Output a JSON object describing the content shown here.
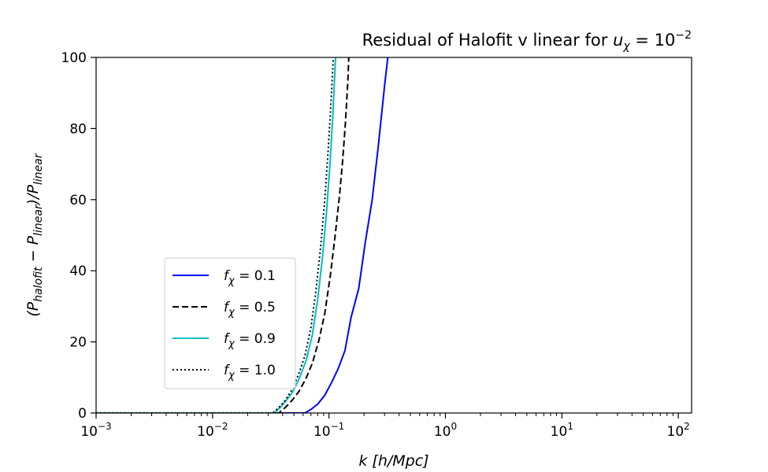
{
  "chart_data": {
    "type": "line",
    "title": "Residual of Halofit v linear for u_χ = 10^−2",
    "title_parts": {
      "main": "Residual of Halofit v linear for ",
      "var": "u",
      "sub": "χ",
      "eq": " = 10",
      "sup": "−2"
    },
    "xlabel": "k [h/Mpc]",
    "xlabel_parts": {
      "var": "k",
      "rest": " [h/Mpc]"
    },
    "ylabel": "(P_halofit − P_linear)/P_linear",
    "ylabel_parts": {
      "open": "(P",
      "sub1": "halofit",
      "mid": " − P",
      "sub2": "linear",
      "mid2": ")/P",
      "sub3": "linear"
    },
    "xscale": "log",
    "xlim": [
      0.001,
      130
    ],
    "ylim": [
      0,
      100
    ],
    "x_ticks": [
      {
        "value": 0.001,
        "base": "10",
        "exp": "−3"
      },
      {
        "value": 0.01,
        "base": "10",
        "exp": "−2"
      },
      {
        "value": 0.1,
        "base": "10",
        "exp": "−1"
      },
      {
        "value": 1,
        "base": "10",
        "exp": "0"
      },
      {
        "value": 10,
        "base": "10",
        "exp": "1"
      },
      {
        "value": 100,
        "base": "10",
        "exp": "2"
      }
    ],
    "y_ticks": [
      0,
      20,
      40,
      60,
      80,
      100
    ],
    "grid": false,
    "legend_position": "lower-left",
    "series": [
      {
        "name": "f_χ = 0.1",
        "label_var": "f",
        "label_sub": "χ",
        "label_val": " = 0.1",
        "color": "#0000ff",
        "dash": "solid",
        "points": [
          [
            0.001,
            0
          ],
          [
            0.02,
            0
          ],
          [
            0.062,
            0
          ],
          [
            0.07,
            1
          ],
          [
            0.08,
            2.5
          ],
          [
            0.092,
            5
          ],
          [
            0.105,
            8.5
          ],
          [
            0.12,
            12.5
          ],
          [
            0.137,
            17.5
          ],
          [
            0.155,
            27
          ],
          [
            0.18,
            35
          ],
          [
            0.205,
            48
          ],
          [
            0.235,
            60
          ],
          [
            0.265,
            75
          ],
          [
            0.3,
            92
          ],
          [
            0.32,
            100
          ]
        ]
      },
      {
        "name": "f_χ = 0.5",
        "label_var": "f",
        "label_sub": "χ",
        "label_val": " = 0.5",
        "color": "#000000",
        "dash": "dashed",
        "points": [
          [
            0.001,
            0
          ],
          [
            0.02,
            0
          ],
          [
            0.037,
            0
          ],
          [
            0.042,
            1.5
          ],
          [
            0.048,
            3.5
          ],
          [
            0.055,
            6
          ],
          [
            0.063,
            9.5
          ],
          [
            0.072,
            14
          ],
          [
            0.082,
            20.5
          ],
          [
            0.092,
            28
          ],
          [
            0.103,
            39
          ],
          [
            0.113,
            50
          ],
          [
            0.123,
            61
          ],
          [
            0.131,
            71
          ],
          [
            0.138,
            81
          ],
          [
            0.145,
            93
          ],
          [
            0.148,
            100
          ]
        ]
      },
      {
        "name": "f_χ = 0.9",
        "label_var": "f",
        "label_sub": "χ",
        "label_val": " = 0.9",
        "color": "#00bfbf",
        "dash": "solid",
        "points": [
          [
            0.001,
            0
          ],
          [
            0.02,
            0
          ],
          [
            0.034,
            0
          ],
          [
            0.038,
            1.5
          ],
          [
            0.043,
            3.5
          ],
          [
            0.049,
            6
          ],
          [
            0.056,
            10
          ],
          [
            0.064,
            15
          ],
          [
            0.072,
            22
          ],
          [
            0.08,
            32
          ],
          [
            0.088,
            44
          ],
          [
            0.095,
            56
          ],
          [
            0.102,
            70
          ],
          [
            0.108,
            84
          ],
          [
            0.112,
            95
          ],
          [
            0.114,
            100
          ]
        ]
      },
      {
        "name": "f_χ = 1.0",
        "label_var": "f",
        "label_sub": "χ",
        "label_val": " = 1.0",
        "color": "#000000",
        "dash": "dotted",
        "points": [
          [
            0.001,
            0
          ],
          [
            0.02,
            0
          ],
          [
            0.033,
            0
          ],
          [
            0.037,
            1.5
          ],
          [
            0.042,
            3.5
          ],
          [
            0.048,
            6.5
          ],
          [
            0.055,
            11
          ],
          [
            0.062,
            16
          ],
          [
            0.07,
            24
          ],
          [
            0.077,
            34
          ],
          [
            0.085,
            47
          ],
          [
            0.092,
            60
          ],
          [
            0.098,
            73
          ],
          [
            0.103,
            85
          ],
          [
            0.107,
            95
          ],
          [
            0.109,
            100
          ]
        ]
      }
    ]
  }
}
